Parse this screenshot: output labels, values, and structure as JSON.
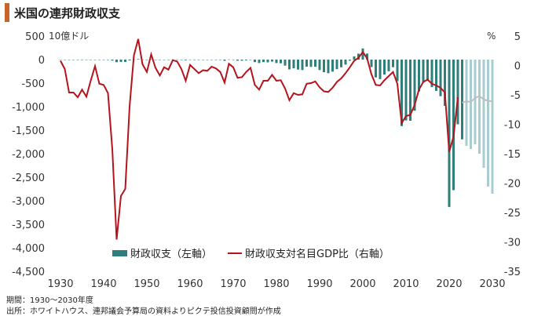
{
  "title": "米国の連邦財政収支",
  "left_unit": "10億ドル",
  "right_unit": "%",
  "footer": {
    "period": "期間：1930～2030年度",
    "source": "出所：ホワイトハウス、連邦議会予算局の資料よりピクテ投信投資顧問が作成"
  },
  "colors": {
    "bar_actual": "#2e7f7a",
    "bar_projected": "#a8cdd0",
    "line_actual": "#b5141d",
    "line_projected": "#bfbfbf",
    "title_accent": "#c8632c"
  },
  "chart_data": {
    "type": "bar+line",
    "x_range": [
      1930,
      2030
    ],
    "x_ticks": [
      "1930",
      "1940",
      "1950",
      "1960",
      "1970",
      "1980",
      "1990",
      "2000",
      "2010",
      "2020",
      "2030"
    ],
    "left_axis": {
      "unit": "10億ドル",
      "range": [
        -4500,
        500
      ],
      "ticks": [
        "500",
        "0",
        "-500",
        "-1,000",
        "-1,500",
        "-2,000",
        "-2,500",
        "-3,000",
        "-3,500",
        "-4,000",
        "-4,500"
      ]
    },
    "right_axis": {
      "unit": "%",
      "range": [
        -35,
        5
      ],
      "ticks": [
        "5",
        "0",
        "-5",
        "-10",
        "-15",
        "-20",
        "-25",
        "-30",
        "-35"
      ]
    },
    "legend": [
      "財政収支（左軸）",
      "財政収支対名目GDP比（右軸）"
    ],
    "bars": {
      "name": "財政収支（左軸）",
      "x": [
        1930,
        1931,
        1932,
        1933,
        1934,
        1935,
        1936,
        1937,
        1938,
        1939,
        1940,
        1941,
        1942,
        1943,
        1944,
        1945,
        1946,
        1947,
        1948,
        1949,
        1950,
        1951,
        1952,
        1953,
        1954,
        1955,
        1956,
        1957,
        1958,
        1959,
        1960,
        1961,
        1962,
        1963,
        1964,
        1965,
        1966,
        1967,
        1968,
        1969,
        1970,
        1971,
        1972,
        1973,
        1974,
        1975,
        1976,
        1977,
        1978,
        1979,
        1980,
        1981,
        1982,
        1983,
        1984,
        1985,
        1986,
        1987,
        1988,
        1989,
        1990,
        1991,
        1992,
        1993,
        1994,
        1995,
        1996,
        1997,
        1998,
        1999,
        2000,
        2001,
        2002,
        2003,
        2004,
        2005,
        2006,
        2007,
        2008,
        2009,
        2010,
        2011,
        2012,
        2013,
        2014,
        2015,
        2016,
        2017,
        2018,
        2019,
        2020,
        2021,
        2022,
        2023,
        2024,
        2025,
        2026,
        2027,
        2028,
        2029,
        2030
      ],
      "values": [
        1,
        -3,
        -3,
        -3,
        -4,
        -3,
        -4,
        -3,
        0,
        -3,
        -3,
        -5,
        -21,
        -55,
        -48,
        -48,
        -16,
        4,
        12,
        1,
        -3,
        6,
        -2,
        -7,
        -1,
        -3,
        4,
        3,
        -3,
        -13,
        0,
        -3,
        -7,
        -5,
        -6,
        -1,
        -4,
        -9,
        -25,
        3,
        -3,
        -23,
        -23,
        -15,
        -6,
        -53,
        -74,
        -54,
        -59,
        -41,
        -74,
        -79,
        -128,
        -208,
        -185,
        -212,
        -221,
        -150,
        -155,
        -153,
        -221,
        -269,
        -290,
        -255,
        -203,
        -164,
        -107,
        -22,
        69,
        126,
        236,
        128,
        -158,
        -378,
        -413,
        -318,
        -248,
        -161,
        -459,
        -1413,
        -1294,
        -1300,
        -1087,
        -680,
        -485,
        -442,
        -585,
        -665,
        -779,
        -984,
        -3132,
        -2775,
        -1375,
        -1695,
        -1833,
        -1900,
        -1800,
        -2000,
        -2300,
        -2700,
        -2850
      ],
      "projected_from": 2024
    },
    "line": {
      "name": "財政収支対名目GDP比（右軸）",
      "x": [
        1930,
        1931,
        1932,
        1933,
        1934,
        1935,
        1936,
        1937,
        1938,
        1939,
        1940,
        1941,
        1942,
        1943,
        1944,
        1945,
        1946,
        1947,
        1948,
        1949,
        1950,
        1951,
        1952,
        1953,
        1954,
        1955,
        1956,
        1957,
        1958,
        1959,
        1960,
        1961,
        1962,
        1963,
        1964,
        1965,
        1966,
        1967,
        1968,
        1969,
        1970,
        1971,
        1972,
        1973,
        1974,
        1975,
        1976,
        1977,
        1978,
        1979,
        1980,
        1981,
        1982,
        1983,
        1984,
        1985,
        1986,
        1987,
        1988,
        1989,
        1990,
        1991,
        1992,
        1993,
        1994,
        1995,
        1996,
        1997,
        1998,
        1999,
        2000,
        2001,
        2002,
        2003,
        2004,
        2005,
        2006,
        2007,
        2008,
        2009,
        2010,
        2011,
        2012,
        2013,
        2014,
        2015,
        2016,
        2017,
        2018,
        2019,
        2020,
        2021,
        2022,
        2023,
        2024,
        2025,
        2026,
        2027,
        2028,
        2029,
        2030
      ],
      "values": [
        0.8,
        -0.6,
        -4.6,
        -4.6,
        -5.4,
        -4.1,
        -5.3,
        -2.6,
        -0.1,
        -3.1,
        -3.3,
        -4.7,
        -14.2,
        -29.6,
        -22.2,
        -21.0,
        -7.0,
        1.7,
        4.5,
        0.2,
        -1.1,
        1.9,
        -0.4,
        -1.7,
        -0.3,
        -0.7,
        0.9,
        0.7,
        -0.6,
        -2.6,
        0.1,
        -0.6,
        -1.3,
        -0.8,
        -0.9,
        -0.2,
        -0.5,
        -1.1,
        -2.9,
        0.3,
        -0.3,
        -2.1,
        -2.0,
        -1.1,
        -0.4,
        -3.3,
        -4.1,
        -2.6,
        -2.6,
        -1.6,
        -2.6,
        -2.5,
        -3.9,
        -5.9,
        -4.7,
        -5.0,
        -4.9,
        -3.1,
        -3.0,
        -2.7,
        -3.7,
        -4.4,
        -4.5,
        -3.8,
        -2.8,
        -2.2,
        -1.3,
        -0.3,
        0.8,
        1.3,
        2.3,
        1.2,
        -1.5,
        -3.3,
        -3.4,
        -2.5,
        -1.8,
        -1.1,
        -3.1,
        -9.8,
        -8.6,
        -8.4,
        -6.7,
        -4.1,
        -2.8,
        -2.4,
        -3.1,
        -3.4,
        -3.8,
        -4.6,
        -14.7,
        -12.1,
        -5.4,
        -6.3,
        -6.1,
        -6.2,
        -5.5,
        -5.2,
        -5.8,
        -6.0,
        -6.1
      ],
      "projected_from": 2024
    }
  }
}
